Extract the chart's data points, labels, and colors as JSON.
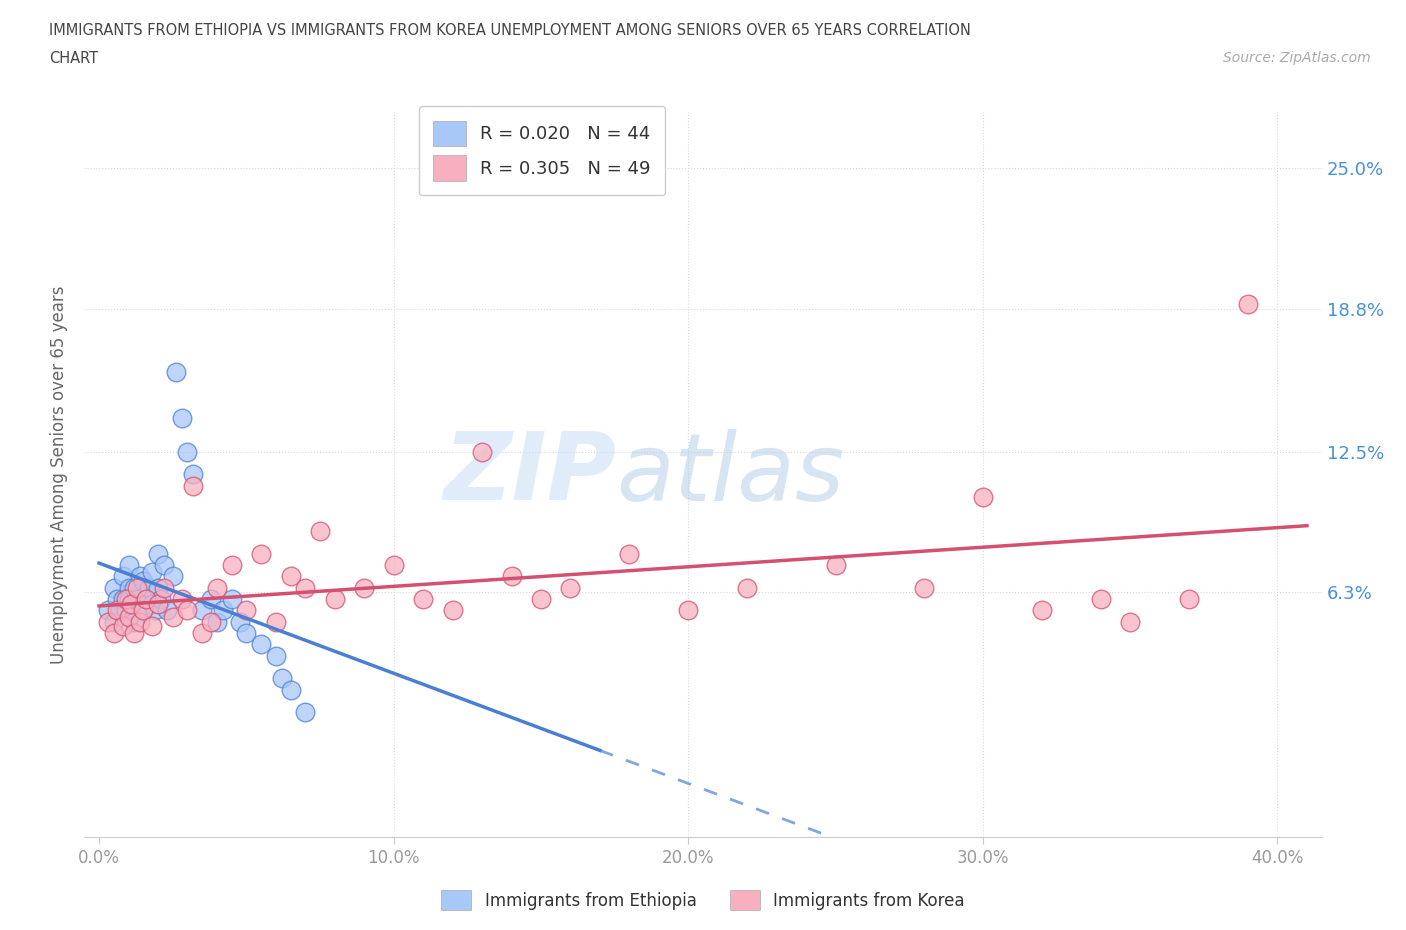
{
  "title_line1": "IMMIGRANTS FROM ETHIOPIA VS IMMIGRANTS FROM KOREA UNEMPLOYMENT AMONG SENIORS OVER 65 YEARS CORRELATION",
  "title_line2": "CHART",
  "source_text": "Source: ZipAtlas.com",
  "ylabel": "Unemployment Among Seniors over 65 years",
  "xlabel_ticks": [
    "0.0%",
    "10.0%",
    "20.0%",
    "30.0%",
    "40.0%"
  ],
  "ylabel_ticks": [
    "6.3%",
    "12.5%",
    "18.8%",
    "25.0%"
  ],
  "xlim": [
    -0.005,
    0.415
  ],
  "ylim": [
    -0.045,
    0.275
  ],
  "ytick_positions": [
    0.063,
    0.125,
    0.188,
    0.25
  ],
  "xtick_positions": [
    0.0,
    0.1,
    0.2,
    0.3,
    0.4
  ],
  "ethiopia_color": "#a8c8f8",
  "ethiopia_color_dark": "#4a7fd4",
  "korea_color": "#f8b0c0",
  "korea_color_dark": "#d45070",
  "ethiopia_R": 0.02,
  "ethiopia_N": 44,
  "korea_R": 0.305,
  "korea_N": 49,
  "legend_label_ethiopia": "Immigrants from Ethiopia",
  "legend_label_korea": "Immigrants from Korea",
  "watermark_zip": "ZIP",
  "watermark_atlas": "atlas",
  "background_color": "#ffffff",
  "grid_color": "#d8d8d8",
  "title_color": "#444444",
  "axis_label_color": "#4a90d9",
  "ethiopia_scatter_x": [
    0.003,
    0.005,
    0.005,
    0.006,
    0.007,
    0.008,
    0.008,
    0.009,
    0.01,
    0.01,
    0.01,
    0.012,
    0.012,
    0.013,
    0.014,
    0.015,
    0.015,
    0.016,
    0.017,
    0.018,
    0.018,
    0.019,
    0.02,
    0.02,
    0.021,
    0.022,
    0.023,
    0.025,
    0.026,
    0.028,
    0.03,
    0.032,
    0.035,
    0.038,
    0.04,
    0.042,
    0.045,
    0.048,
    0.05,
    0.055,
    0.06,
    0.062,
    0.065,
    0.07
  ],
  "ethiopia_scatter_y": [
    0.055,
    0.05,
    0.065,
    0.06,
    0.055,
    0.06,
    0.07,
    0.055,
    0.065,
    0.06,
    0.075,
    0.05,
    0.065,
    0.06,
    0.07,
    0.055,
    0.068,
    0.06,
    0.065,
    0.058,
    0.072,
    0.055,
    0.065,
    0.08,
    0.06,
    0.075,
    0.055,
    0.07,
    0.16,
    0.14,
    0.125,
    0.115,
    0.055,
    0.06,
    0.05,
    0.055,
    0.06,
    0.05,
    0.045,
    0.04,
    0.035,
    0.025,
    0.02,
    0.01
  ],
  "korea_scatter_x": [
    0.003,
    0.005,
    0.006,
    0.008,
    0.009,
    0.01,
    0.011,
    0.012,
    0.013,
    0.014,
    0.015,
    0.016,
    0.018,
    0.02,
    0.022,
    0.025,
    0.028,
    0.03,
    0.032,
    0.035,
    0.038,
    0.04,
    0.045,
    0.05,
    0.055,
    0.06,
    0.065,
    0.07,
    0.075,
    0.08,
    0.09,
    0.1,
    0.11,
    0.12,
    0.13,
    0.14,
    0.15,
    0.16,
    0.18,
    0.2,
    0.22,
    0.25,
    0.28,
    0.3,
    0.32,
    0.34,
    0.35,
    0.37,
    0.39
  ],
  "korea_scatter_y": [
    0.05,
    0.045,
    0.055,
    0.048,
    0.06,
    0.052,
    0.058,
    0.045,
    0.065,
    0.05,
    0.055,
    0.06,
    0.048,
    0.058,
    0.065,
    0.052,
    0.06,
    0.055,
    0.11,
    0.045,
    0.05,
    0.065,
    0.075,
    0.055,
    0.08,
    0.05,
    0.07,
    0.065,
    0.09,
    0.06,
    0.065,
    0.075,
    0.06,
    0.055,
    0.125,
    0.07,
    0.06,
    0.065,
    0.08,
    0.055,
    0.065,
    0.075,
    0.065,
    0.105,
    0.055,
    0.06,
    0.05,
    0.06,
    0.19
  ]
}
